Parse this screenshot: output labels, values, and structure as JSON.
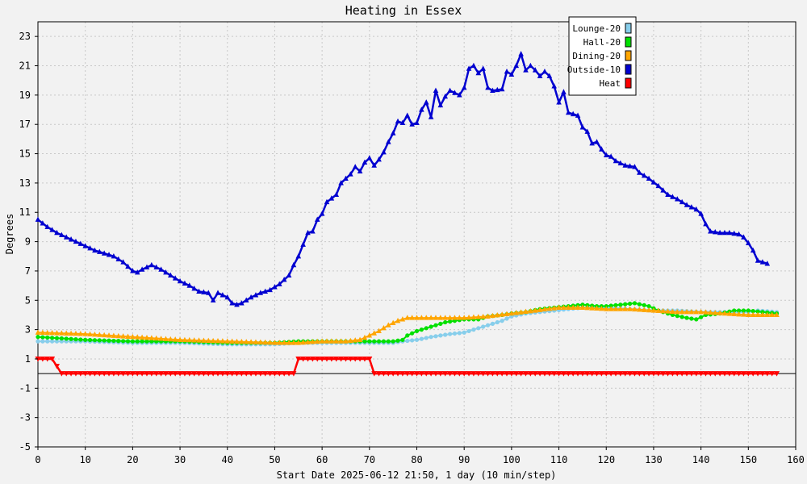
{
  "chart_data": {
    "type": "line",
    "title": "Heating in Essex",
    "xlabel": "Start Date 2025-06-12 21:50, 1 day (10 min/step)",
    "ylabel": "Degrees",
    "xlim": [
      0,
      160
    ],
    "ylim": [
      -5,
      24
    ],
    "x_ticks": [
      0,
      10,
      20,
      30,
      40,
      50,
      60,
      70,
      80,
      90,
      100,
      110,
      120,
      130,
      140,
      150,
      160
    ],
    "y_ticks": [
      -5,
      -3,
      -1,
      1,
      3,
      5,
      7,
      9,
      11,
      13,
      15,
      17,
      19,
      21,
      23
    ],
    "grid": true,
    "zero_line": true,
    "legend_position": "top-right",
    "series": [
      {
        "name": "Lounge-20",
        "color": "#87ceeb",
        "marker": "circle",
        "points": [
          [
            0,
            2.2
          ],
          [
            10,
            2.2
          ],
          [
            20,
            2.1
          ],
          [
            30,
            2.1
          ],
          [
            40,
            2.0
          ],
          [
            50,
            2.0
          ],
          [
            55,
            2.1
          ],
          [
            60,
            2.1
          ],
          [
            65,
            2.1
          ],
          [
            70,
            2.1
          ],
          [
            75,
            2.1
          ],
          [
            77,
            2.2
          ],
          [
            80,
            2.3
          ],
          [
            83,
            2.5
          ],
          [
            87,
            2.7
          ],
          [
            90,
            2.8
          ],
          [
            92,
            3.0
          ],
          [
            95,
            3.3
          ],
          [
            98,
            3.6
          ],
          [
            100,
            3.9
          ],
          [
            103,
            4.1
          ],
          [
            106,
            4.2
          ],
          [
            109,
            4.3
          ],
          [
            112,
            4.4
          ],
          [
            115,
            4.5
          ],
          [
            120,
            4.5
          ],
          [
            125,
            4.4
          ],
          [
            130,
            4.3
          ],
          [
            135,
            4.3
          ],
          [
            140,
            4.2
          ],
          [
            145,
            4.2
          ],
          [
            150,
            4.2
          ],
          [
            152,
            4.3
          ],
          [
            156,
            4.2
          ]
        ]
      },
      {
        "name": "Hall-20",
        "color": "#00e000",
        "marker": "circle",
        "points": [
          [
            0,
            2.5
          ],
          [
            5,
            2.4
          ],
          [
            10,
            2.3
          ],
          [
            20,
            2.2
          ],
          [
            30,
            2.2
          ],
          [
            40,
            2.1
          ],
          [
            50,
            2.1
          ],
          [
            55,
            2.2
          ],
          [
            60,
            2.2
          ],
          [
            65,
            2.2
          ],
          [
            70,
            2.2
          ],
          [
            75,
            2.2
          ],
          [
            77,
            2.3
          ],
          [
            78,
            2.6
          ],
          [
            80,
            2.9
          ],
          [
            82,
            3.1
          ],
          [
            84,
            3.3
          ],
          [
            86,
            3.5
          ],
          [
            88,
            3.6
          ],
          [
            90,
            3.7
          ],
          [
            93,
            3.7
          ],
          [
            95,
            3.9
          ],
          [
            98,
            4.0
          ],
          [
            100,
            4.1
          ],
          [
            103,
            4.2
          ],
          [
            106,
            4.4
          ],
          [
            109,
            4.5
          ],
          [
            112,
            4.6
          ],
          [
            115,
            4.7
          ],
          [
            118,
            4.6
          ],
          [
            120,
            4.6
          ],
          [
            123,
            4.7
          ],
          [
            126,
            4.8
          ],
          [
            129,
            4.6
          ],
          [
            131,
            4.3
          ],
          [
            134,
            4.0
          ],
          [
            137,
            3.8
          ],
          [
            139,
            3.7
          ],
          [
            141,
            4.0
          ],
          [
            144,
            4.1
          ],
          [
            147,
            4.3
          ],
          [
            150,
            4.3
          ],
          [
            153,
            4.2
          ],
          [
            156,
            4.1
          ]
        ]
      },
      {
        "name": "Dining-20",
        "color": "#ffa500",
        "marker": "triangle",
        "points": [
          [
            0,
            2.8
          ],
          [
            10,
            2.7
          ],
          [
            20,
            2.5
          ],
          [
            30,
            2.3
          ],
          [
            40,
            2.2
          ],
          [
            50,
            2.1
          ],
          [
            55,
            2.1
          ],
          [
            60,
            2.2
          ],
          [
            65,
            2.2
          ],
          [
            68,
            2.3
          ],
          [
            70,
            2.6
          ],
          [
            72,
            2.9
          ],
          [
            74,
            3.3
          ],
          [
            76,
            3.6
          ],
          [
            78,
            3.8
          ],
          [
            82,
            3.8
          ],
          [
            86,
            3.8
          ],
          [
            90,
            3.8
          ],
          [
            95,
            3.9
          ],
          [
            100,
            4.1
          ],
          [
            105,
            4.3
          ],
          [
            110,
            4.5
          ],
          [
            115,
            4.5
          ],
          [
            120,
            4.4
          ],
          [
            125,
            4.4
          ],
          [
            130,
            4.3
          ],
          [
            135,
            4.2
          ],
          [
            140,
            4.2
          ],
          [
            145,
            4.1
          ],
          [
            150,
            4.0
          ],
          [
            156,
            4.0
          ]
        ]
      },
      {
        "name": "Outside-10",
        "color": "#0000d0",
        "marker": "triangle",
        "points": [
          [
            0,
            10.5
          ],
          [
            2,
            10.0
          ],
          [
            4,
            9.6
          ],
          [
            6,
            9.3
          ],
          [
            8,
            9.0
          ],
          [
            10,
            8.7
          ],
          [
            12,
            8.4
          ],
          [
            14,
            8.2
          ],
          [
            16,
            8.0
          ],
          [
            18,
            7.6
          ],
          [
            20,
            7.0
          ],
          [
            21,
            6.9
          ],
          [
            22,
            7.1
          ],
          [
            24,
            7.4
          ],
          [
            26,
            7.1
          ],
          [
            28,
            6.7
          ],
          [
            30,
            6.3
          ],
          [
            32,
            6.0
          ],
          [
            34,
            5.6
          ],
          [
            36,
            5.5
          ],
          [
            37,
            5.0
          ],
          [
            38,
            5.5
          ],
          [
            40,
            5.2
          ],
          [
            41,
            4.8
          ],
          [
            42,
            4.7
          ],
          [
            43,
            4.8
          ],
          [
            45,
            5.2
          ],
          [
            47,
            5.5
          ],
          [
            49,
            5.7
          ],
          [
            51,
            6.1
          ],
          [
            53,
            6.7
          ],
          [
            54,
            7.4
          ],
          [
            55,
            8.0
          ],
          [
            56,
            8.8
          ],
          [
            57,
            9.6
          ],
          [
            58,
            9.7
          ],
          [
            59,
            10.5
          ],
          [
            60,
            10.9
          ],
          [
            61,
            11.7
          ],
          [
            63,
            12.2
          ],
          [
            64,
            13.0
          ],
          [
            66,
            13.6
          ],
          [
            67,
            14.1
          ],
          [
            68,
            13.8
          ],
          [
            69,
            14.4
          ],
          [
            70,
            14.7
          ],
          [
            71,
            14.2
          ],
          [
            72,
            14.6
          ],
          [
            73,
            15.1
          ],
          [
            74,
            15.8
          ],
          [
            75,
            16.4
          ],
          [
            76,
            17.2
          ],
          [
            77,
            17.1
          ],
          [
            78,
            17.6
          ],
          [
            79,
            17.0
          ],
          [
            80,
            17.1
          ],
          [
            81,
            18.0
          ],
          [
            82,
            18.5
          ],
          [
            83,
            17.5
          ],
          [
            84,
            19.3
          ],
          [
            85,
            18.3
          ],
          [
            86,
            18.9
          ],
          [
            87,
            19.3
          ],
          [
            89,
            19.0
          ],
          [
            90,
            19.5
          ],
          [
            91,
            20.8
          ],
          [
            92,
            21.0
          ],
          [
            93,
            20.5
          ],
          [
            94,
            20.8
          ],
          [
            95,
            19.5
          ],
          [
            96,
            19.3
          ],
          [
            98,
            19.4
          ],
          [
            99,
            20.6
          ],
          [
            100,
            20.4
          ],
          [
            101,
            21.0
          ],
          [
            102,
            21.8
          ],
          [
            103,
            20.7
          ],
          [
            104,
            21.0
          ],
          [
            105,
            20.7
          ],
          [
            106,
            20.3
          ],
          [
            107,
            20.6
          ],
          [
            108,
            20.3
          ],
          [
            109,
            19.6
          ],
          [
            110,
            18.5
          ],
          [
            111,
            19.2
          ],
          [
            112,
            17.8
          ],
          [
            113,
            17.7
          ],
          [
            114,
            17.6
          ],
          [
            115,
            16.8
          ],
          [
            116,
            16.5
          ],
          [
            117,
            15.7
          ],
          [
            118,
            15.8
          ],
          [
            119,
            15.3
          ],
          [
            120,
            14.9
          ],
          [
            121,
            14.8
          ],
          [
            122,
            14.5
          ],
          [
            124,
            14.2
          ],
          [
            126,
            14.1
          ],
          [
            127,
            13.7
          ],
          [
            129,
            13.3
          ],
          [
            131,
            12.8
          ],
          [
            133,
            12.2
          ],
          [
            135,
            11.9
          ],
          [
            137,
            11.5
          ],
          [
            139,
            11.2
          ],
          [
            140,
            10.9
          ],
          [
            141,
            10.2
          ],
          [
            142,
            9.7
          ],
          [
            144,
            9.6
          ],
          [
            146,
            9.6
          ],
          [
            148,
            9.5
          ],
          [
            149,
            9.3
          ],
          [
            150,
            8.9
          ],
          [
            151,
            8.4
          ],
          [
            152,
            7.7
          ],
          [
            153,
            7.6
          ],
          [
            154,
            7.5
          ]
        ]
      },
      {
        "name": "Heat",
        "color": "#ff0000",
        "marker": "triangle-down",
        "points": [
          [
            0,
            1
          ],
          [
            3.5,
            1
          ],
          [
            4.5,
            0
          ],
          [
            54,
            0
          ],
          [
            55,
            1
          ],
          [
            70,
            1
          ],
          [
            71,
            0
          ],
          [
            156,
            0
          ]
        ]
      }
    ]
  }
}
